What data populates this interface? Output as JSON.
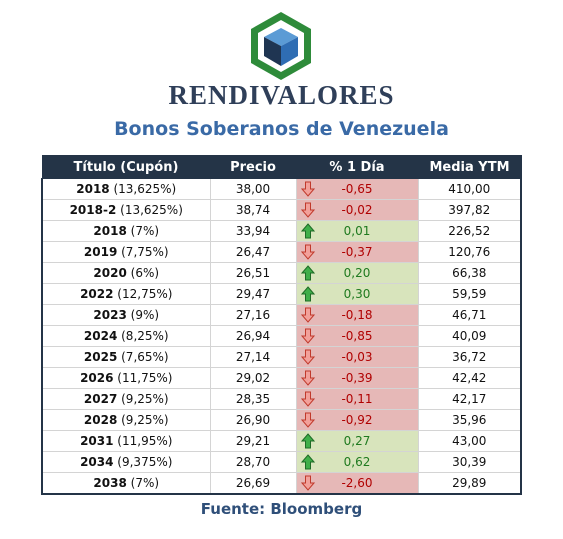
{
  "brand": "RENDIVALORES",
  "subtitle": "Bonos Soberanos de Venezuela",
  "source": "Fuente: Bloomberg",
  "colors": {
    "header_bg": "#243447",
    "negative_bg": "#e6b8b7",
    "positive_bg": "#d8e4bc",
    "negative_text": "#b00000",
    "positive_text": "#1f7a1f",
    "subtitle": "#3a6aa6",
    "logo_green": "#2e8b3a"
  },
  "icons": {
    "logo": "hexagon-cube-logo",
    "up": "green-up-arrow-icon",
    "down": "red-down-arrow-icon"
  },
  "chart_data": {
    "type": "table",
    "columns": [
      "Título (Cupón)",
      "Precio",
      "% 1 Día",
      "Media YTM"
    ],
    "rows": [
      {
        "year": "2018",
        "coupon": "(13,625%)",
        "precio": "38,00",
        "cambio": "-0,65",
        "ytm": "410,00"
      },
      {
        "year": "2018-2",
        "coupon": "(13,625%)",
        "precio": "38,74",
        "cambio": "-0,02",
        "ytm": "397,82"
      },
      {
        "year": "2018",
        "coupon": "(7%)",
        "precio": "33,94",
        "cambio": "0,01",
        "ytm": "226,52"
      },
      {
        "year": "2019",
        "coupon": "(7,75%)",
        "precio": "26,47",
        "cambio": "-0,37",
        "ytm": "120,76"
      },
      {
        "year": "2020",
        "coupon": "(6%)",
        "precio": "26,51",
        "cambio": "0,20",
        "ytm": "66,38"
      },
      {
        "year": "2022",
        "coupon": "(12,75%)",
        "precio": "29,47",
        "cambio": "0,30",
        "ytm": "59,59"
      },
      {
        "year": "2023",
        "coupon": "(9%)",
        "precio": "27,16",
        "cambio": "-0,18",
        "ytm": "46,71"
      },
      {
        "year": "2024",
        "coupon": "(8,25%)",
        "precio": "26,94",
        "cambio": "-0,85",
        "ytm": "40,09"
      },
      {
        "year": "2025",
        "coupon": "(7,65%)",
        "precio": "27,14",
        "cambio": "-0,03",
        "ytm": "36,72"
      },
      {
        "year": "2026",
        "coupon": "(11,75%)",
        "precio": "29,02",
        "cambio": "-0,39",
        "ytm": "42,42"
      },
      {
        "year": "2027",
        "coupon": "(9,25%)",
        "precio": "28,35",
        "cambio": "-0,11",
        "ytm": "42,17"
      },
      {
        "year": "2028",
        "coupon": "(9,25%)",
        "precio": "26,90",
        "cambio": "-0,92",
        "ytm": "35,96"
      },
      {
        "year": "2031",
        "coupon": "(11,95%)",
        "precio": "29,21",
        "cambio": "0,27",
        "ytm": "43,00"
      },
      {
        "year": "2034",
        "coupon": "(9,375%)",
        "precio": "28,70",
        "cambio": "0,62",
        "ytm": "30,39"
      },
      {
        "year": "2038",
        "coupon": "(7%)",
        "precio": "26,69",
        "cambio": "-2,60",
        "ytm": "29,89"
      }
    ]
  }
}
